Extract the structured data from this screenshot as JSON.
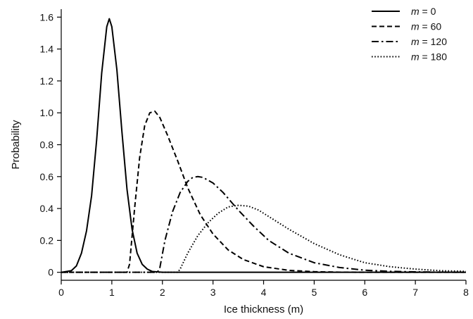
{
  "chart_data": {
    "type": "line",
    "title": "",
    "xlabel": "Ice thickness (m)",
    "ylabel": "Probability",
    "xlim": [
      0,
      8
    ],
    "ylim": [
      -0.05,
      1.65
    ],
    "xticks": [
      0,
      1,
      2,
      3,
      4,
      5,
      6,
      7,
      8
    ],
    "xtick_labels": [
      "0",
      "1",
      "2",
      "3",
      "4",
      "5",
      "6",
      "7",
      "8"
    ],
    "yticks": [
      0,
      0.2,
      0.4,
      0.6,
      0.8,
      1.0,
      1.2,
      1.4,
      1.6
    ],
    "ytick_labels": [
      "0",
      "0.2",
      "0.4",
      "0.6",
      "0.8",
      "1.0",
      "1.2",
      "1.4",
      "1.6"
    ],
    "grid": false,
    "legend_position": "top-right",
    "series": [
      {
        "name": "m = 0",
        "legend_var": "m",
        "legend_rest": " = 0",
        "dash": "solid",
        "x": [
          0,
          0.2,
          0.3,
          0.4,
          0.5,
          0.6,
          0.7,
          0.8,
          0.9,
          0.95,
          1.0,
          1.1,
          1.2,
          1.3,
          1.4,
          1.5,
          1.6,
          1.7,
          1.8,
          2.0,
          2.5,
          8.0
        ],
        "y": [
          0,
          0.01,
          0.04,
          0.12,
          0.26,
          0.48,
          0.83,
          1.25,
          1.54,
          1.59,
          1.54,
          1.27,
          0.88,
          0.52,
          0.27,
          0.12,
          0.05,
          0.02,
          0.005,
          0,
          0,
          0
        ]
      },
      {
        "name": "m = 60",
        "legend_var": "m",
        "legend_rest": " = 60",
        "dash": "dashed",
        "x": [
          0,
          1.3,
          1.35,
          1.45,
          1.55,
          1.65,
          1.75,
          1.85,
          1.95,
          2.1,
          2.3,
          2.5,
          2.75,
          3.0,
          3.3,
          3.6,
          4.0,
          4.5,
          5.0,
          5.5,
          6.0,
          7.0,
          8.0
        ],
        "y": [
          0,
          0,
          0.05,
          0.4,
          0.72,
          0.92,
          1.0,
          1.01,
          0.97,
          0.86,
          0.7,
          0.53,
          0.36,
          0.24,
          0.14,
          0.08,
          0.035,
          0.012,
          0.004,
          0.001,
          0,
          0,
          0
        ]
      },
      {
        "name": "m = 120",
        "legend_var": "m",
        "legend_rest": " = 120",
        "dash": "dashdot",
        "x": [
          0,
          1.9,
          1.95,
          2.05,
          2.2,
          2.35,
          2.5,
          2.6,
          2.7,
          2.8,
          3.0,
          3.2,
          3.5,
          3.8,
          4.1,
          4.5,
          5.0,
          5.5,
          6.0,
          6.5,
          7.0,
          7.5,
          8.0
        ],
        "y": [
          0,
          0,
          0.03,
          0.2,
          0.38,
          0.5,
          0.57,
          0.595,
          0.6,
          0.595,
          0.56,
          0.5,
          0.39,
          0.29,
          0.2,
          0.12,
          0.06,
          0.03,
          0.013,
          0.006,
          0.003,
          0.001,
          0
        ]
      },
      {
        "name": "m = 180",
        "legend_var": "m",
        "legend_rest": " = 180",
        "dash": "dotted",
        "x": [
          0,
          2.3,
          2.35,
          2.5,
          2.7,
          2.9,
          3.1,
          3.3,
          3.5,
          3.7,
          3.9,
          4.2,
          4.5,
          5.0,
          5.5,
          6.0,
          6.5,
          7.0,
          7.5,
          8.0
        ],
        "y": [
          0,
          0,
          0.02,
          0.12,
          0.23,
          0.31,
          0.37,
          0.41,
          0.42,
          0.415,
          0.39,
          0.33,
          0.27,
          0.18,
          0.11,
          0.06,
          0.035,
          0.02,
          0.01,
          0.006
        ]
      }
    ]
  }
}
